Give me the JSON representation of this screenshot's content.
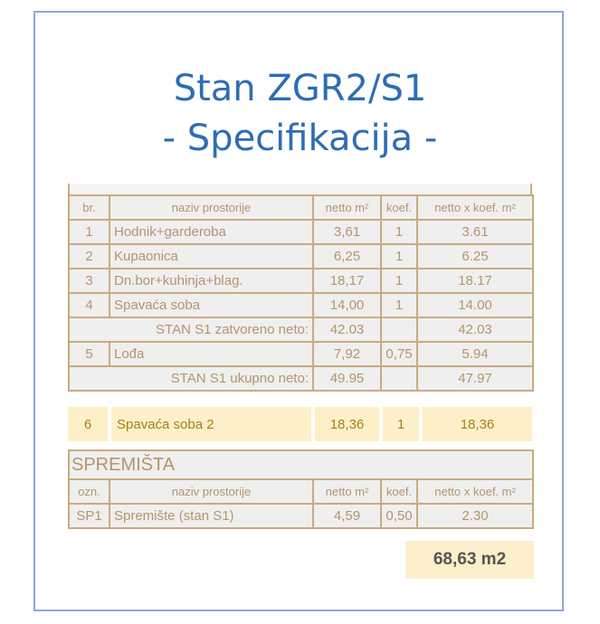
{
  "title": {
    "line1": "Stan ZGR2/S1",
    "line2": "- Specifikacija -"
  },
  "main_table": {
    "headers": [
      "br.",
      "naziv prostorije",
      "netto m²",
      "koef.",
      "netto x koef. m²"
    ],
    "rows": [
      [
        "1",
        "Hodnik+garderoba",
        "3,61",
        "1",
        "3.61"
      ],
      [
        "2",
        "Kupaonica",
        "6,25",
        "1",
        "6.25"
      ],
      [
        "3",
        "Dn.bor+kuhinja+blag.",
        "18,17",
        "1",
        "18.17"
      ],
      [
        "4",
        "Spavaća soba",
        "14,00",
        "1",
        "14.00"
      ]
    ],
    "subtotal_closed": {
      "label": "STAN S1 zatvoreno neto:",
      "netto": "42.03",
      "koef": "",
      "total": "42.03"
    },
    "row5": [
      "5",
      "Lođa",
      "7,92",
      "0,75",
      "5.94"
    ],
    "subtotal_total": {
      "label": "STAN S1 ukupno neto:",
      "netto": "49.95",
      "koef": "",
      "total": "47.97"
    }
  },
  "added_row": [
    "6",
    "Spavaća soba 2",
    "18,36",
    "1",
    "18,36"
  ],
  "storage_table": {
    "title": "SPREMIŠTA",
    "headers": [
      "ozn.",
      "naziv prostorije",
      "netto m²",
      "koef.",
      "netto x koef. m²"
    ],
    "rows": [
      [
        "SP1",
        "Spremište (stan S1)",
        "4,59",
        "0,50",
        "2.30"
      ]
    ]
  },
  "total": "68,63 m2",
  "colors": {
    "title": "#2e6db4",
    "border": "#c9ab80",
    "highlight": "#fdf0c8"
  }
}
